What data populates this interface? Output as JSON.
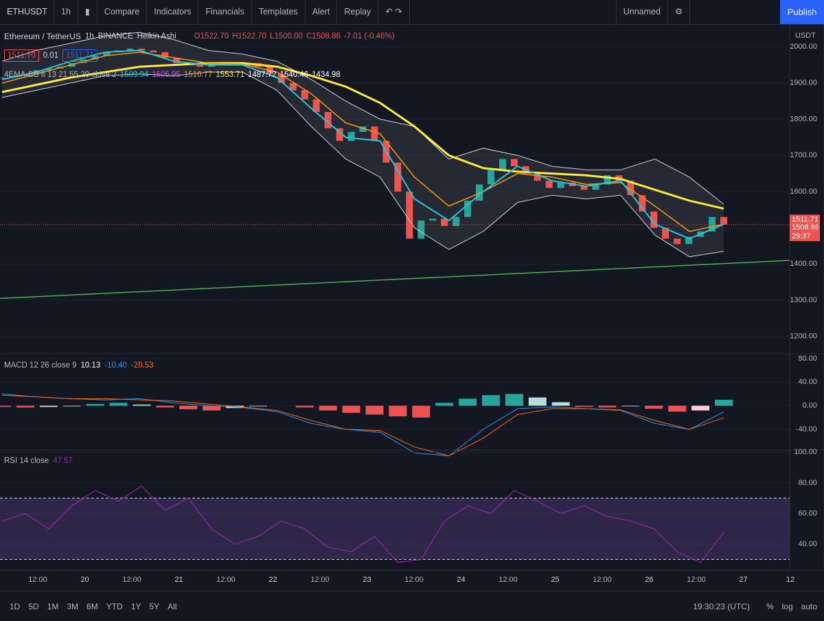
{
  "toolbar": {
    "symbol": "ETHUSDT",
    "interval": "1h",
    "compare": "Compare",
    "indicators": "Indicators",
    "financials": "Financials",
    "templates": "Templates",
    "alert": "Alert",
    "replay": "Replay",
    "layout_name": "Unnamed",
    "publish": "Publish"
  },
  "legend": {
    "name": "Ethereum / TetherUS",
    "interval": "1h",
    "exchange": "BINANCE",
    "style": "Heikin Ashi",
    "ohlc": [
      "O1522.70",
      "H1522.70",
      "L1500.00",
      "C1508.86",
      "-7.01 (-0.46%)"
    ],
    "bid": "1511.70",
    "spread": "0.01",
    "ask": "1511.71",
    "indicator": "4EMA-BB 8 13 21 55 20 close 2",
    "indicator_values": [
      {
        "text": "1509.94",
        "color": "#26c6da"
      },
      {
        "text": "1505.95",
        "color": "#e040fb"
      },
      {
        "text": "1510.77",
        "color": "#ff9800"
      },
      {
        "text": "1553.71",
        "color": "#ffeb3b"
      },
      {
        "text": "1487.72",
        "color": "#ffffff"
      },
      {
        "text": "1540.46",
        "color": "#ffffff"
      },
      {
        "text": "1434.98",
        "color": "#ffffff"
      }
    ]
  },
  "chart_data": [
    {
      "type": "candlestick",
      "currency": "USDT",
      "ylim": [
        1152,
        2061
      ],
      "yticks": [
        {
          "value": 2000,
          "label": "2000.00"
        },
        {
          "value": 1900,
          "label": "1900.00"
        },
        {
          "value": 1800,
          "label": "1800.00"
        },
        {
          "value": 1700,
          "label": "1700.00"
        },
        {
          "value": 1600,
          "label": "1600.00"
        },
        {
          "value": 1500,
          "label": "1500.00"
        },
        {
          "value": 1400,
          "label": "1400.00"
        },
        {
          "value": 1300,
          "label": "1300.00"
        },
        {
          "value": 1200,
          "label": "1200.00"
        }
      ],
      "up_color": "#26a69a",
      "down_color": "#ef5350",
      "values": [
        1915,
        1920,
        1925,
        1935,
        1940,
        1945,
        1955,
        1965,
        1975,
        1985,
        1990,
        1995,
        1990,
        1985,
        1970,
        1955,
        1950,
        1945,
        1950,
        1955,
        1950,
        1955,
        1945,
        1925,
        1900,
        1880,
        1855,
        1820,
        1775,
        1740,
        1765,
        1780,
        1740,
        1680,
        1600,
        1470,
        1520,
        1525,
        1505,
        1530,
        1575,
        1620,
        1660,
        1690,
        1670,
        1650,
        1630,
        1610,
        1625,
        1615,
        1605,
        1620,
        1645,
        1630,
        1590,
        1545,
        1500,
        1470,
        1455,
        1475,
        1490,
        1530,
        1509
      ],
      "series": [
        {
          "color": "#d4d4d4",
          "width": 1,
          "values": [
            1960,
            1990,
            2010,
            2030,
            2040,
            2020,
            1990,
            1980,
            1960,
            1910,
            1850,
            1800,
            1780,
            1690,
            1720,
            1700,
            1670,
            1660,
            1660,
            1690,
            1640,
            1565
          ]
        },
        {
          "color": "#d4d4d4",
          "width": 1,
          "values": [
            1860,
            1880,
            1900,
            1920,
            1925,
            1920,
            1930,
            1930,
            1880,
            1780,
            1690,
            1640,
            1500,
            1440,
            1490,
            1570,
            1590,
            1580,
            1590,
            1480,
            1420,
            1435
          ]
        },
        {
          "color": "#ffeb3b",
          "width": 3,
          "values": [
            1875,
            1895,
            1915,
            1930,
            1945,
            1950,
            1955,
            1955,
            1945,
            1920,
            1890,
            1845,
            1780,
            1700,
            1665,
            1655,
            1650,
            1645,
            1635,
            1605,
            1575,
            1553
          ]
        },
        {
          "color": "#ff9800",
          "width": 1.5,
          "values": [
            1900,
            1925,
            1950,
            1975,
            1985,
            1970,
            1955,
            1952,
            1930,
            1870,
            1790,
            1760,
            1640,
            1560,
            1600,
            1650,
            1640,
            1620,
            1625,
            1560,
            1490,
            1510
          ]
        },
        {
          "color": "#26c6da",
          "width": 2,
          "values": [
            1910,
            1930,
            1960,
            1985,
            1990,
            1960,
            1950,
            1950,
            1915,
            1830,
            1750,
            1740,
            1580,
            1520,
            1600,
            1670,
            1630,
            1615,
            1630,
            1510,
            1470,
            1510
          ]
        }
      ],
      "trend_line": {
        "color": "#4caf50",
        "values": [
          1305,
          1410
        ]
      },
      "price_tags": [
        {
          "value": 1511.71,
          "label": "1511.71"
        },
        {
          "value": 1508.86,
          "label": "1508.86"
        }
      ],
      "countdown": "29:37",
      "tag_color": "#ef5350"
    },
    {
      "type": "macd",
      "title": "MACD 12 26 close 9",
      "legend_values": [
        {
          "text": "10.13",
          "color": "#ffffff"
        },
        {
          "text": "-10.40",
          "color": "#2196f3"
        },
        {
          "text": "-20.53",
          "color": "#ff6d00"
        }
      ],
      "ylim": [
        -75,
        87
      ],
      "yticks": [
        {
          "value": 80,
          "label": "80.00"
        },
        {
          "value": 40,
          "label": "40.00"
        },
        {
          "value": 0,
          "label": "0.00"
        },
        {
          "value": -40,
          "label": "-40.00"
        }
      ],
      "bar_colors": {
        "up_grow": "#26a69a",
        "up_fall": "#b2dfdb",
        "down_grow": "#ef5350",
        "down_fall": "#ffcdd2"
      },
      "values": [
        -2,
        -3,
        -2,
        -1,
        3,
        5,
        2,
        -3,
        -6,
        -8,
        -4,
        -1,
        0,
        -3,
        -8,
        -12,
        -15,
        -18,
        -20,
        5,
        12,
        18,
        20,
        14,
        6,
        -2,
        -3,
        -1,
        -5,
        -10,
        -8,
        10.13
      ],
      "series": [
        {
          "color": "#2196f3",
          "width": 1,
          "values": [
            20,
            15,
            12,
            10,
            12,
            5,
            0,
            -3,
            -10,
            -30,
            -40,
            -45,
            -80,
            -85,
            -40,
            -5,
            -2,
            -5,
            -8,
            -30,
            -40,
            -10.4
          ]
        },
        {
          "color": "#ff6d00",
          "width": 1,
          "values": [
            18,
            15,
            12,
            12,
            10,
            8,
            3,
            -2,
            -8,
            -25,
            -40,
            -42,
            -70,
            -85,
            -55,
            -15,
            -5,
            -5,
            -7,
            -25,
            -40,
            -20.53
          ]
        }
      ]
    },
    {
      "type": "line",
      "title": "RSI 14 close",
      "legend_value": "47.57",
      "color": "#9c27b0",
      "ylim": [
        23,
        101
      ],
      "yticks": [
        {
          "value": 100,
          "label": "100.00"
        },
        {
          "value": 80,
          "label": "80.00"
        },
        {
          "value": 60,
          "label": "60.00"
        },
        {
          "value": 40,
          "label": "40.00"
        }
      ],
      "band": [
        30,
        70
      ],
      "band_color": "rgba(126,87,194,0.25)",
      "values": [
        55,
        60,
        50,
        65,
        75,
        68,
        78,
        62,
        70,
        50,
        40,
        45,
        55,
        50,
        38,
        35,
        45,
        28,
        30,
        55,
        65,
        60,
        75,
        68,
        60,
        65,
        58,
        55,
        50,
        35,
        28,
        47.57
      ]
    }
  ],
  "time_axis": {
    "labels": [
      "12:00",
      "20",
      "12:00",
      "21",
      "12:00",
      "22",
      "12:00",
      "23",
      "12:00",
      "24",
      "12:00",
      "25",
      "12:00",
      "26",
      "12:00",
      "27",
      "12"
    ]
  },
  "bottom_bar": {
    "ranges": [
      "1D",
      "5D",
      "1M",
      "3M",
      "6M",
      "YTD",
      "1Y",
      "5Y",
      "All"
    ],
    "clock": "19:30:23 (UTC)",
    "percent": "%",
    "log": "log",
    "auto": "auto"
  }
}
